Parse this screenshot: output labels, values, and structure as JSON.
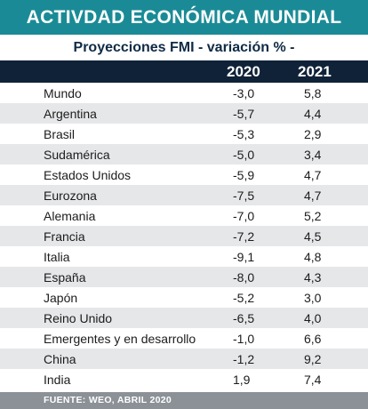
{
  "header": {
    "title": "ACTIVDAD ECONÓMICA MUNDIAL",
    "subtitle": "Proyecciones FMI - variación % -"
  },
  "table": {
    "columns": [
      "2020",
      "2021"
    ],
    "rows": [
      {
        "name": "Mundo",
        "v2020": "-3,0",
        "v2021": "5,8"
      },
      {
        "name": "Argentina",
        "v2020": "-5,7",
        "v2021": "4,4"
      },
      {
        "name": "Brasil",
        "v2020": "-5,3",
        "v2021": "2,9"
      },
      {
        "name": "Sudamérica",
        "v2020": "-5,0",
        "v2021": "3,4"
      },
      {
        "name": "Estados Unidos",
        "v2020": "-5,9",
        "v2021": "4,7"
      },
      {
        "name": "Eurozona",
        "v2020": "-7,5",
        "v2021": "4,7"
      },
      {
        "name": "Alemania",
        "v2020": "-7,0",
        "v2021": "5,2"
      },
      {
        "name": "Francia",
        "v2020": "-7,2",
        "v2021": "4,5"
      },
      {
        "name": "Italia",
        "v2020": "-9,1",
        "v2021": "4,8"
      },
      {
        "name": "España",
        "v2020": "-8,0",
        "v2021": "4,3"
      },
      {
        "name": "Japón",
        "v2020": "-5,2",
        "v2021": "3,0"
      },
      {
        "name": "Reino Unido",
        "v2020": "-6,5",
        "v2021": "4,0"
      },
      {
        "name": "Emergentes y en desarrollo",
        "v2020": "-1,0",
        "v2021": "6,6"
      },
      {
        "name": "China",
        "v2020": "-1,2",
        "v2021": "9,2"
      },
      {
        "name": "India",
        "v2020": "1,9",
        "v2021": "7,4"
      }
    ]
  },
  "footer": {
    "source": "FUENTE: WEO, ABRIL 2020"
  },
  "colors": {
    "title_bg": "#1a8b96",
    "header_bg": "#0f2238",
    "row_alt_bg": "#e6e7e9",
    "footer_bg": "#8b9197"
  }
}
